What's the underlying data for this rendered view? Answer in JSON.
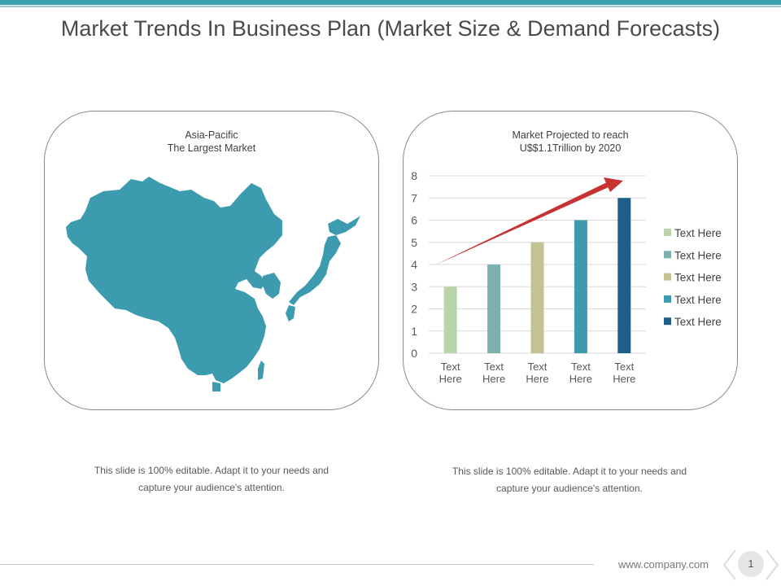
{
  "slide": {
    "title": "Market Trends In Business Plan (Market Size & Demand Forecasts)",
    "footer_url": "www.company.com",
    "page_number": "1"
  },
  "left_panel": {
    "caption_line1": "Asia-Pacific",
    "caption_line2": "The Largest Market",
    "map_color": "#3d9bb0",
    "note": "This slide is 100% editable. Adapt it to your needs and capture your audience's attention."
  },
  "right_panel": {
    "caption_line1": "Market Projected to reach",
    "caption_line2": "U$$1.1Trillion by 2020",
    "note": "This slide is 100% editable. Adapt it to your needs and capture your audience's attention."
  },
  "chart_data": {
    "type": "bar",
    "title": "Market Projected to reach U$$1.1Trillion by 2020",
    "categories": [
      "Text Here",
      "Text Here",
      "Text Here",
      "Text Here",
      "Text Here"
    ],
    "values": [
      3,
      4,
      5,
      6,
      7
    ],
    "colors": [
      "#b8d4a8",
      "#7fb0b0",
      "#c4c193",
      "#3d9bb0",
      "#1e5f8a"
    ],
    "legend": [
      "Text Here",
      "Text Here",
      "Text Here",
      "Text Here",
      "Text Here"
    ],
    "legend_position": "right",
    "ylim": [
      0,
      8
    ],
    "yticks": [
      "0",
      "1",
      "2",
      "3",
      "4",
      "5",
      "6",
      "7",
      "8"
    ],
    "grid": true,
    "trend_arrow": {
      "from": 4,
      "to": 8,
      "color": "#c83232"
    }
  }
}
